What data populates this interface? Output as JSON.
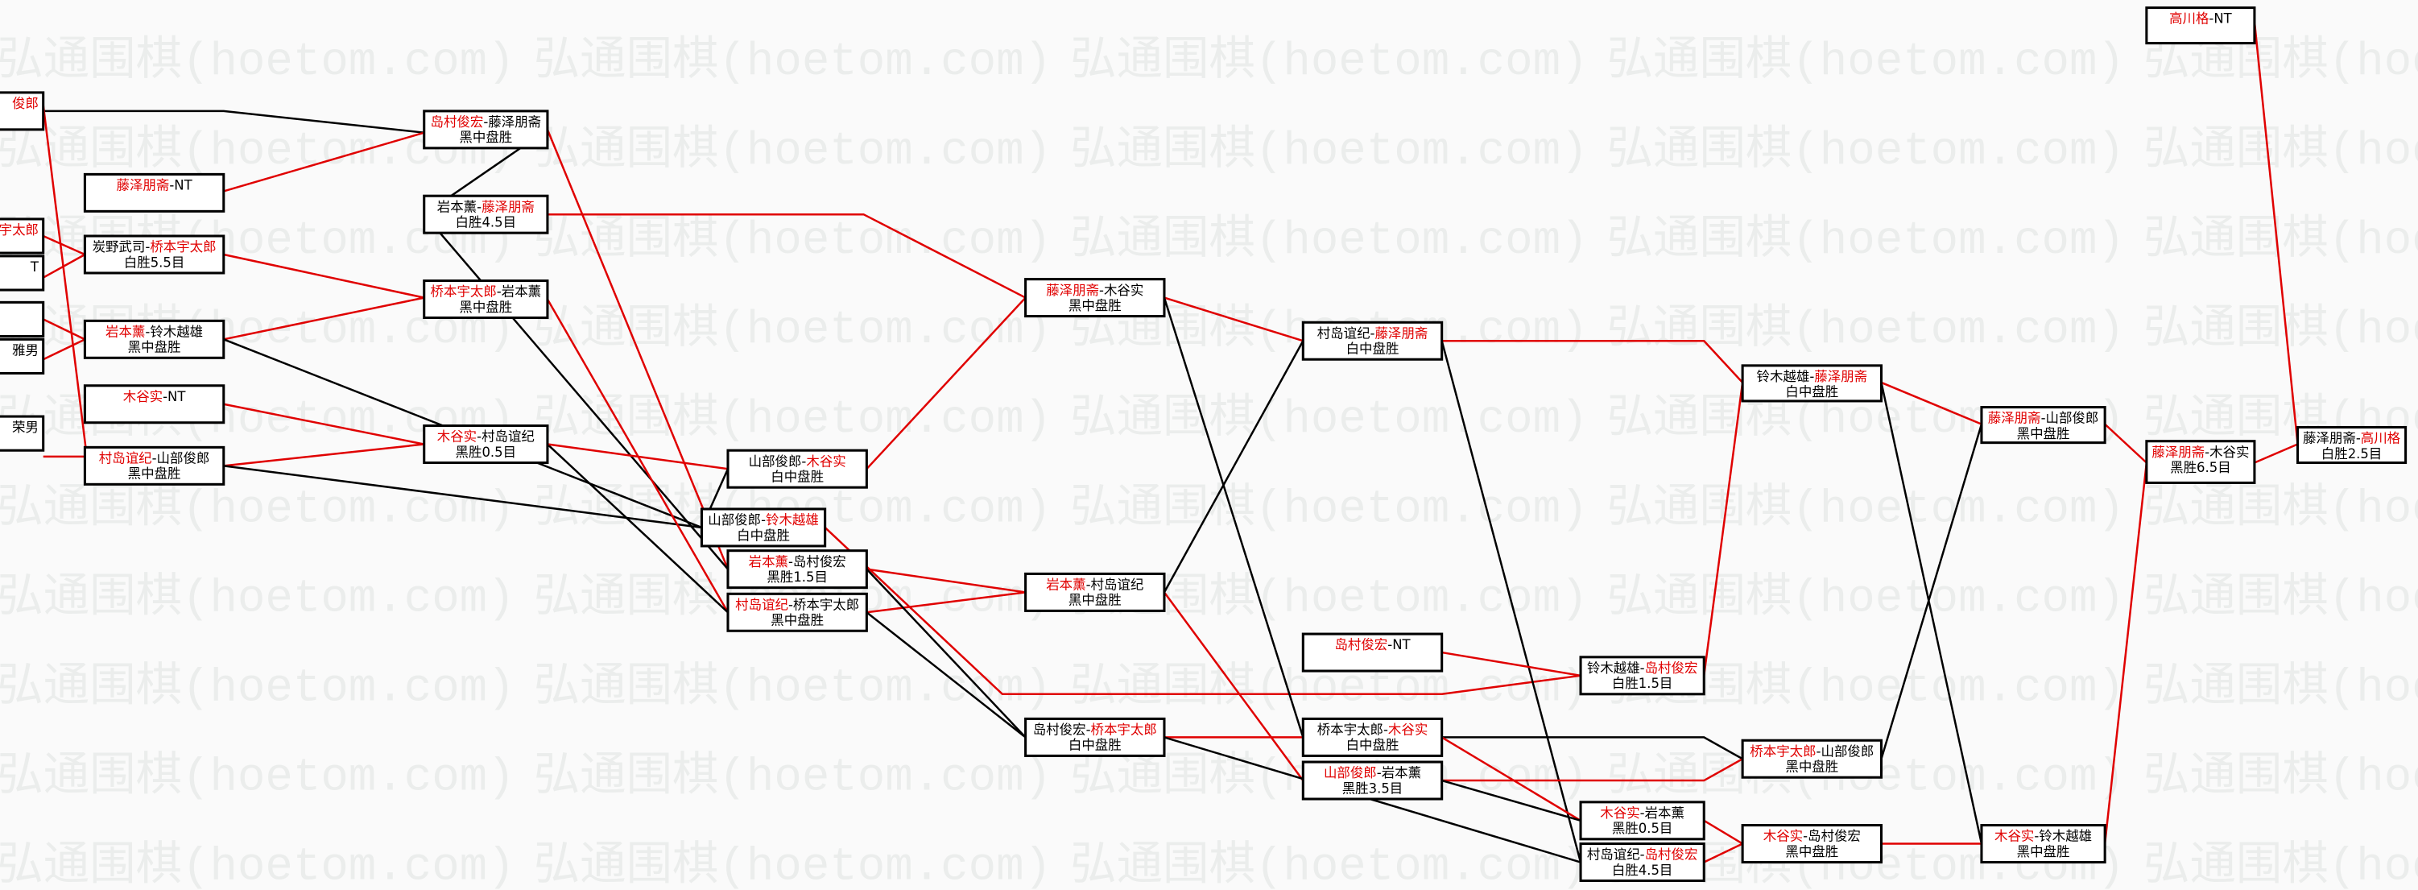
{
  "watermark": "弘通围棋(hoetom.com)",
  "colors": {
    "winner": "#e00000",
    "loser_line": "#000000",
    "winner_line": "#e00000",
    "watermark": "#ebedec"
  },
  "partial_boxes": [
    {
      "id": "L1",
      "text": "俊郎",
      "red": true
    },
    {
      "id": "L2",
      "text": "宇太郎",
      "red": true
    },
    {
      "id": "L3",
      "text": "T",
      "red": false
    },
    {
      "id": "L4",
      "text": "",
      "red": false
    },
    {
      "id": "L5",
      "text": "雅男",
      "red": false
    },
    {
      "id": "L6",
      "text": "荣男",
      "red": false
    }
  ],
  "matches": [
    {
      "id": "B1",
      "left": "藤泽朋斋",
      "right": "NT",
      "winner": "left",
      "result": ""
    },
    {
      "id": "B2",
      "left": "炭野武司",
      "right": "桥本宇太郎",
      "winner": "right",
      "result": "白胜5.5目"
    },
    {
      "id": "B3",
      "left": "岩本薰",
      "right": "铃木越雄",
      "winner": "left",
      "result": "黑中盘胜"
    },
    {
      "id": "B4",
      "left": "木谷实",
      "right": "NT",
      "winner": "left",
      "result": ""
    },
    {
      "id": "B5",
      "left": "村岛谊纪",
      "right": "山部俊郎",
      "winner": "left",
      "result": "黑中盘胜"
    },
    {
      "id": "C1",
      "left": "岛村俊宏",
      "right": "藤泽朋斋",
      "winner": "left",
      "result": "黑中盘胜"
    },
    {
      "id": "C2",
      "left": "岩本薰",
      "right": "藤泽朋斋",
      "winner": "right",
      "result": "白胜4.5目"
    },
    {
      "id": "C3",
      "left": "桥本宇太郎",
      "right": "岩本薰",
      "winner": "left",
      "result": "黑中盘胜"
    },
    {
      "id": "C4",
      "left": "木谷实",
      "right": "村岛谊纪",
      "winner": "left",
      "result": "黑胜0.5目"
    },
    {
      "id": "D1",
      "left": "山部俊郎",
      "right": "木谷实",
      "winner": "right",
      "result": "白中盘胜"
    },
    {
      "id": "D2",
      "left": "山部俊郎",
      "right": "铃木越雄",
      "winner": "right",
      "result": "白中盘胜"
    },
    {
      "id": "D3",
      "left": "岩本薰",
      "right": "岛村俊宏",
      "winner": "left",
      "result": "黑胜1.5目"
    },
    {
      "id": "D4",
      "left": "村岛谊纪",
      "right": "桥本宇太郎",
      "winner": "left",
      "result": "黑中盘胜"
    },
    {
      "id": "E1",
      "left": "藤泽朋斋",
      "right": "木谷实",
      "winner": "left",
      "result": "黑中盘胜"
    },
    {
      "id": "E2",
      "left": "岩本薰",
      "right": "村岛谊纪",
      "winner": "left",
      "result": "黑中盘胜"
    },
    {
      "id": "E3",
      "left": "岛村俊宏",
      "right": "桥本宇太郎",
      "winner": "right",
      "result": "白中盘胜"
    },
    {
      "id": "F1",
      "left": "村岛谊纪",
      "right": "藤泽朋斋",
      "winner": "right",
      "result": "白中盘胜"
    },
    {
      "id": "F2",
      "left": "岛村俊宏",
      "right": "NT",
      "winner": "left",
      "result": ""
    },
    {
      "id": "F3",
      "left": "桥本宇太郎",
      "right": "木谷实",
      "winner": "right",
      "result": "白中盘胜"
    },
    {
      "id": "F4",
      "left": "山部俊郎",
      "right": "岩本薰",
      "winner": "left",
      "result": "黑胜3.5目"
    },
    {
      "id": "G1",
      "left": "铃木越雄",
      "right": "岛村俊宏",
      "winner": "right",
      "result": "白胜1.5目"
    },
    {
      "id": "G2",
      "left": "木谷实",
      "right": "岩本薰",
      "winner": "left",
      "result": "黑胜0.5目"
    },
    {
      "id": "G3",
      "left": "村岛谊纪",
      "right": "岛村俊宏",
      "winner": "right",
      "result": "白胜4.5目"
    },
    {
      "id": "H1",
      "left": "铃木越雄",
      "right": "藤泽朋斋",
      "winner": "right",
      "result": "白中盘胜"
    },
    {
      "id": "H2",
      "left": "桥本宇太郎",
      "right": "山部俊郎",
      "winner": "left",
      "result": "黑中盘胜"
    },
    {
      "id": "H3",
      "left": "木谷实",
      "right": "岛村俊宏",
      "winner": "left",
      "result": "黑中盘胜"
    },
    {
      "id": "I1",
      "left": "藤泽朋斋",
      "right": "山部俊郎",
      "winner": "left",
      "result": "黑中盘胜"
    },
    {
      "id": "I2",
      "left": "木谷实",
      "right": "铃木越雄",
      "winner": "left",
      "result": "黑中盘胜"
    },
    {
      "id": "J1",
      "left": "高川格",
      "right": "NT",
      "winner": "left",
      "result": ""
    },
    {
      "id": "J2",
      "left": "藤泽朋斋",
      "right": "木谷实",
      "winner": "left",
      "result": "黑胜6.5目"
    },
    {
      "id": "K1",
      "left": "藤泽朋斋",
      "right": "高川格",
      "winner": "right",
      "result": "白胜2.5目"
    }
  ]
}
